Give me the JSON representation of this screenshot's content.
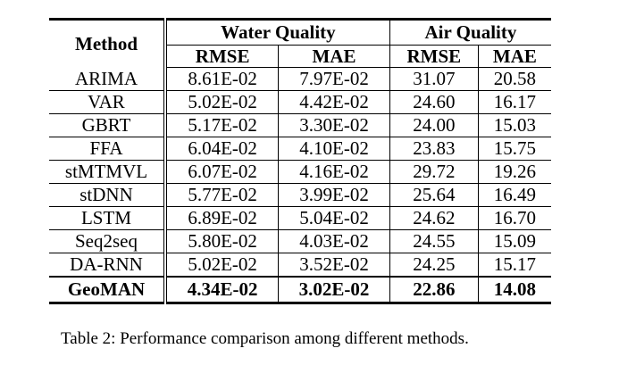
{
  "table": {
    "method_header": "Method",
    "groups": [
      "Water Quality",
      "Air Quality"
    ],
    "metrics": [
      "RMSE",
      "MAE",
      "RMSE",
      "MAE"
    ],
    "rows": [
      {
        "method": "ARIMA",
        "values": [
          "8.61E-02",
          "7.97E-02",
          "31.07",
          "20.58"
        ]
      },
      {
        "method": "VAR",
        "values": [
          "5.02E-02",
          "4.42E-02",
          "24.60",
          "16.17"
        ]
      },
      {
        "method": "GBRT",
        "values": [
          "5.17E-02",
          "3.30E-02",
          "24.00",
          "15.03"
        ]
      },
      {
        "method": "FFA",
        "values": [
          "6.04E-02",
          "4.10E-02",
          "23.83",
          "15.75"
        ]
      },
      {
        "method": "stMTMVL",
        "values": [
          "6.07E-02",
          "4.16E-02",
          "29.72",
          "19.26"
        ]
      },
      {
        "method": "stDNN",
        "values": [
          "5.77E-02",
          "3.99E-02",
          "25.64",
          "16.49"
        ]
      },
      {
        "method": "LSTM",
        "values": [
          "6.89E-02",
          "5.04E-02",
          "24.62",
          "16.70"
        ]
      },
      {
        "method": "Seq2seq",
        "values": [
          "5.80E-02",
          "4.03E-02",
          "24.55",
          "15.09"
        ]
      },
      {
        "method": "DA-RNN",
        "values": [
          "5.02E-02",
          "3.52E-02",
          "24.25",
          "15.17"
        ]
      }
    ],
    "best_row": {
      "method": "GeoMAN",
      "values": [
        "4.34E-02",
        "3.02E-02",
        "22.86",
        "14.08"
      ]
    }
  },
  "caption": "Table 2: Performance comparison among different methods."
}
